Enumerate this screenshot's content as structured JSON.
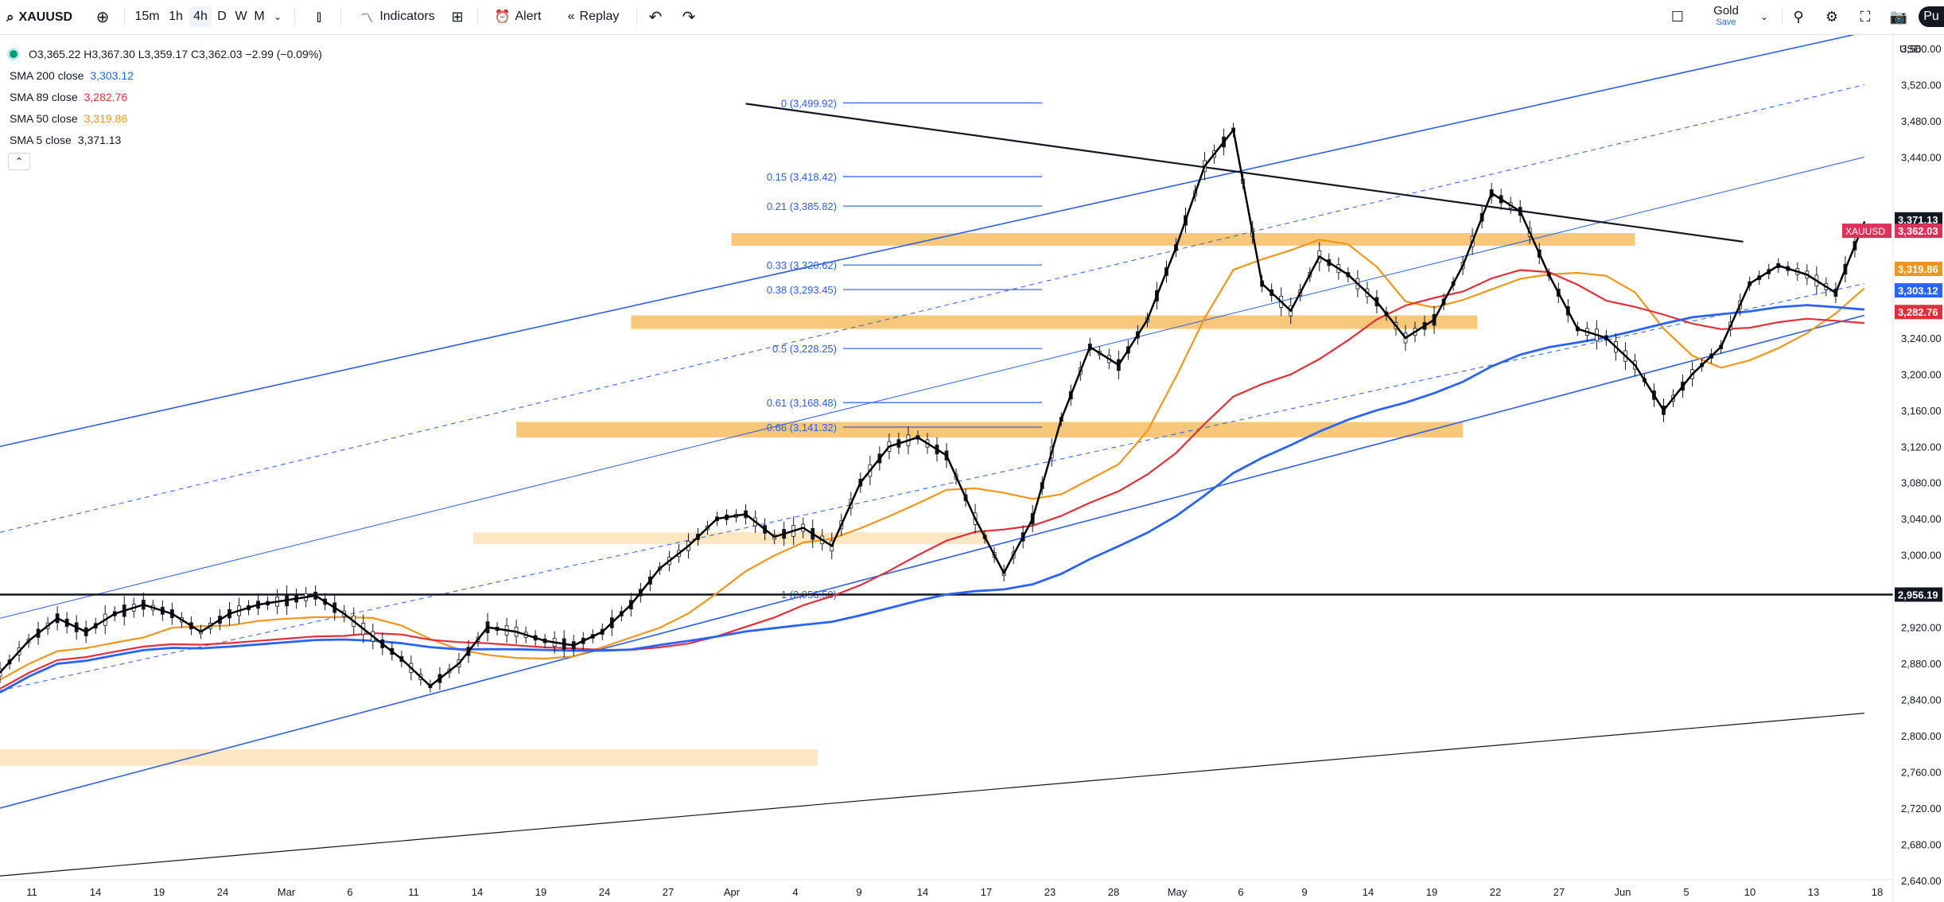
{
  "toolbar": {
    "symbol": "XAUUSD",
    "intervals": [
      "15m",
      "1h",
      "4h",
      "D",
      "W",
      "M"
    ],
    "active_interval": "4h",
    "indicators_label": "Indicators",
    "alert_label": "Alert",
    "replay_label": "Replay",
    "layout_name": "Gold",
    "save_label": "Save",
    "publish_label": "Pu"
  },
  "legend": {
    "ohlc": "O3,365.22 H3,367.30 L3,359.17 C3,362.03 −2.99 (−0.09%)",
    "sma200_label": "SMA 200 close",
    "sma200_value": "3,303.12",
    "sma89_label": "SMA 89 close",
    "sma89_value": "3,282.76",
    "sma50_label": "SMA 50 close",
    "sma50_value": "3,319.86",
    "sma5_label": "SMA 5 close",
    "sma5_value": "3,371.13"
  },
  "colors": {
    "sma200": "#2962ff",
    "sma89": "#e0303a",
    "sma50": "#f0961e",
    "sma5": "#000000",
    "channel": "#2f5ce8",
    "zone_strong": "#f8c87a",
    "zone_light": "#fde6c2",
    "price_tag": "#e0305a",
    "fib": "#2f5ce8"
  },
  "chart_data": {
    "type": "line",
    "symbol": "XAUUSD",
    "currency": "USD",
    "x_tick_labels": [
      "11",
      "14",
      "19",
      "24",
      "Mar",
      "6",
      "11",
      "14",
      "19",
      "24",
      "27",
      "Apr",
      "4",
      "9",
      "14",
      "17",
      "23",
      "28",
      "May",
      "6",
      "9",
      "14",
      "19",
      "22",
      "27",
      "Jun",
      "5",
      "10",
      "13",
      "18"
    ],
    "y_tick_labels": [
      "2,640.00",
      "2,680.00",
      "2,720.00",
      "2,760.00",
      "2,800.00",
      "2,840.00",
      "2,880.00",
      "2,920.00",
      "3,000.00",
      "3,040.00",
      "3,080.00",
      "3,120.00",
      "3,160.00",
      "3,200.00",
      "3,240.00",
      "3,440.00",
      "3,480.00",
      "3,520.00",
      "3,560.00"
    ],
    "ylim": [
      2625,
      3575
    ],
    "x_index_range": [
      0,
      132
    ],
    "price_series_sma5_close": {
      "x": [
        0,
        2,
        4,
        6,
        8,
        10,
        12,
        14,
        16,
        18,
        20,
        22,
        24,
        26,
        28,
        30,
        32,
        34,
        36,
        38,
        40,
        42,
        44,
        46,
        48,
        50,
        52,
        54,
        56,
        58,
        60,
        62,
        64,
        66,
        68,
        70,
        72,
        74,
        76,
        78,
        80,
        82,
        84,
        86,
        88,
        90,
        92,
        94,
        96,
        98,
        100,
        102,
        104,
        106,
        108,
        110,
        112,
        114,
        116,
        118,
        120,
        122,
        124,
        126,
        128,
        130
      ],
      "y": [
        2870,
        2905,
        2930,
        2915,
        2935,
        2945,
        2935,
        2915,
        2935,
        2945,
        2950,
        2955,
        2935,
        2910,
        2885,
        2855,
        2880,
        2920,
        2915,
        2905,
        2900,
        2915,
        2945,
        2985,
        3010,
        3040,
        3045,
        3020,
        3030,
        3010,
        3080,
        3120,
        3130,
        3110,
        3040,
        2980,
        3040,
        3150,
        3230,
        3210,
        3260,
        3340,
        3430,
        3470,
        3300,
        3270,
        3330,
        3310,
        3280,
        3240,
        3260,
        3320,
        3400,
        3380,
        3310,
        3250,
        3240,
        3210,
        3160,
        3200,
        3230,
        3300,
        3320,
        3310,
        3290,
        3368
      ]
    },
    "sma_levels_last": {
      "SMA 200": 3303.12,
      "SMA 89": 3282.76,
      "SMA 50": 3319.86,
      "SMA 5": 3371.13
    },
    "fibonacci": [
      {
        "label": "0 (3,499.92)",
        "price": 3499.92
      },
      {
        "label": "0.15 (3,418.42)",
        "price": 3418.42
      },
      {
        "label": "0.21 (3,385.82)",
        "price": 3385.82
      },
      {
        "label": "0.33 (3,320.62)",
        "price": 3320.62
      },
      {
        "label": "0.38 (3,293.45)",
        "price": 3293.45
      },
      {
        "label": "0.5 (3,228.25)",
        "price": 3228.25
      },
      {
        "label": "0.61 (3,168.48)",
        "price": 3168.48
      },
      {
        "label": "0.66 (3,141.32)",
        "price": 3141.32
      },
      {
        "label": "1 (2,956.58)",
        "price": 2956.58
      }
    ],
    "horizontal_line": {
      "price": 2956.19,
      "label": "2,956.19"
    },
    "price_tags": [
      {
        "label": "3,371.13",
        "price": 3371.13,
        "kind": "sma5"
      },
      {
        "label": "3,362.03",
        "price": 3362.03,
        "kind": "last",
        "symbol": "XAUUSD"
      },
      {
        "label": "3,319.86",
        "price": 3319.86,
        "kind": "sma50"
      },
      {
        "label": "3,303.12",
        "price": 3303.12,
        "kind": "sma200"
      },
      {
        "label": "3,282.76",
        "price": 3282.76,
        "kind": "sma89"
      }
    ],
    "zones": [
      {
        "x_from": 51,
        "x_to": 114,
        "price_from": 3342,
        "price_to": 3356,
        "style": "strong"
      },
      {
        "x_from": 44,
        "x_to": 103,
        "price_from": 3250,
        "price_to": 3265,
        "style": "strong"
      },
      {
        "x_from": 36,
        "x_to": 102,
        "price_from": 3130,
        "price_to": 3147,
        "style": "strong"
      },
      {
        "x_from": 33,
        "x_to": 69,
        "price_from": 3012,
        "price_to": 3025,
        "style": "light"
      },
      {
        "x_from": 0,
        "x_to": 57,
        "price_from": 2767,
        "price_to": 2785,
        "style": "light"
      }
    ],
    "trendlines": [
      {
        "from": {
          "x": 52,
          "price": 3499
        },
        "to": {
          "x": 116,
          "price": 3320
        },
        "kind": "downtrend"
      }
    ],
    "grid": false
  }
}
